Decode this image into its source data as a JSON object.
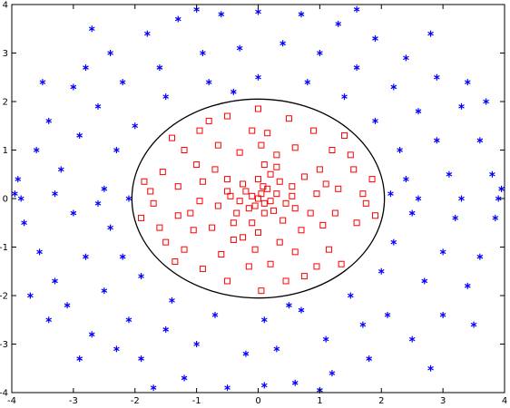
{
  "chart_data": {
    "type": "scatter",
    "title": "",
    "xlabel": "",
    "ylabel": "",
    "xlim": [
      -4,
      4
    ],
    "ylim": [
      -4,
      4
    ],
    "grid": false,
    "legend": "none",
    "x_ticks": [
      -4,
      -3,
      -2,
      -1,
      0,
      1,
      2,
      3,
      4
    ],
    "y_ticks": [
      -4,
      -3,
      -2,
      -1,
      0,
      1,
      2,
      3,
      4
    ],
    "x_tick_labels": [
      "-4",
      "-3",
      "-2",
      "-1",
      "0",
      "1",
      "2",
      "3",
      "4"
    ],
    "y_tick_labels": [
      "-4",
      "-3",
      "-2",
      "-1",
      "0",
      "1",
      "2",
      "3",
      "4"
    ],
    "boundary": {
      "shape": "ellipse",
      "center": [
        0,
        0
      ],
      "rx": 2.05,
      "ry": 2.05,
      "color": "#000000"
    },
    "series": [
      {
        "marker": "square",
        "color": "#ff0000",
        "points": [
          [
            0.0,
            0.0
          ],
          [
            0.05,
            0.1
          ],
          [
            -0.1,
            0.05
          ],
          [
            0.1,
            -0.1
          ],
          [
            -0.05,
            -0.15
          ],
          [
            0.15,
            0.2
          ],
          [
            -0.2,
            0.15
          ],
          [
            0.2,
            -0.05
          ],
          [
            -0.15,
            -0.2
          ],
          [
            0.08,
            0.25
          ],
          [
            0.3,
            0.1
          ],
          [
            -0.3,
            -0.05
          ],
          [
            0.25,
            -0.25
          ],
          [
            -0.25,
            0.3
          ],
          [
            0.1,
            -0.3
          ],
          [
            0.35,
            0.35
          ],
          [
            -0.35,
            -0.3
          ],
          [
            0.0,
            0.4
          ],
          [
            0.45,
            -0.1
          ],
          [
            -0.45,
            0.05
          ],
          [
            0.2,
            0.5
          ],
          [
            -0.1,
            -0.5
          ],
          [
            0.55,
            0.25
          ],
          [
            -0.5,
            0.4
          ],
          [
            0.4,
            -0.45
          ],
          [
            -0.4,
            -0.5
          ],
          [
            0.6,
            -0.2
          ],
          [
            -0.65,
            -0.15
          ],
          [
            0.1,
            0.7
          ],
          [
            0.0,
            -0.7
          ],
          [
            0.75,
            0.45
          ],
          [
            -0.7,
            0.6
          ],
          [
            0.7,
            -0.65
          ],
          [
            -0.75,
            -0.6
          ],
          [
            0.3,
            0.9
          ],
          [
            -0.3,
            0.95
          ],
          [
            0.35,
            -0.9
          ],
          [
            -0.4,
            -0.85
          ],
          [
            0.95,
            0.1
          ],
          [
            -0.95,
            -0.05
          ],
          [
            1.0,
            0.6
          ],
          [
            -1.0,
            0.7
          ],
          [
            1.05,
            -0.55
          ],
          [
            -1.05,
            -0.65
          ],
          [
            0.6,
            1.05
          ],
          [
            -0.65,
            1.1
          ],
          [
            0.6,
            -1.1
          ],
          [
            -0.6,
            -1.15
          ],
          [
            1.3,
            0.2
          ],
          [
            -1.3,
            0.25
          ],
          [
            1.25,
            -0.3
          ],
          [
            -1.3,
            -0.35
          ],
          [
            0.15,
            1.35
          ],
          [
            -0.1,
            1.4
          ],
          [
            0.2,
            -1.35
          ],
          [
            -0.15,
            -1.4
          ],
          [
            1.2,
            1.0
          ],
          [
            -1.2,
            1.0
          ],
          [
            1.15,
            -1.05
          ],
          [
            -1.2,
            -1.05
          ],
          [
            0.9,
            1.4
          ],
          [
            -0.95,
            1.4
          ],
          [
            0.95,
            -1.4
          ],
          [
            -0.9,
            -1.45
          ],
          [
            1.55,
            0.6
          ],
          [
            -1.55,
            0.55
          ],
          [
            1.6,
            -0.5
          ],
          [
            -1.6,
            -0.6
          ],
          [
            1.7,
            0.1
          ],
          [
            -1.7,
            -0.1
          ],
          [
            1.75,
            -0.1
          ],
          [
            -1.75,
            0.15
          ],
          [
            0.5,
            1.65
          ],
          [
            -0.5,
            1.7
          ],
          [
            0.45,
            -1.7
          ],
          [
            -0.5,
            -1.7
          ],
          [
            1.4,
            1.3
          ],
          [
            -1.4,
            1.25
          ],
          [
            1.35,
            -1.35
          ],
          [
            -1.35,
            -1.3
          ],
          [
            1.85,
            0.4
          ],
          [
            -1.85,
            0.35
          ],
          [
            1.9,
            -0.35
          ],
          [
            -1.9,
            -0.4
          ],
          [
            0.0,
            1.85
          ],
          [
            0.05,
            -1.9
          ],
          [
            -0.9,
            0.35
          ],
          [
            0.85,
            -0.3
          ],
          [
            -0.5,
            0.15
          ],
          [
            0.55,
            0.05
          ],
          [
            -0.25,
            -0.8
          ],
          [
            0.3,
            0.65
          ],
          [
            1.5,
            0.9
          ],
          [
            -1.5,
            -0.9
          ],
          [
            0.75,
            -1.6
          ],
          [
            -0.8,
            1.6
          ],
          [
            1.1,
            0.3
          ],
          [
            -1.1,
            -0.3
          ],
          [
            0.05,
            1.1
          ],
          [
            -0.05,
            -1.05
          ]
        ]
      },
      {
        "marker": "asterisk",
        "color": "#0000ff",
        "points": [
          [
            -3.9,
            0.4
          ],
          [
            -3.8,
            -0.5
          ],
          [
            -3.85,
            0.0
          ],
          [
            -3.6,
            1.0
          ],
          [
            -3.55,
            -1.1
          ],
          [
            -3.4,
            1.6
          ],
          [
            -3.3,
            -1.7
          ],
          [
            -3.0,
            2.3
          ],
          [
            -3.1,
            -2.2
          ],
          [
            -2.8,
            2.7
          ],
          [
            -2.7,
            -2.8
          ],
          [
            -2.4,
            3.0
          ],
          [
            -2.3,
            -3.1
          ],
          [
            -1.8,
            3.4
          ],
          [
            -1.9,
            -3.3
          ],
          [
            -1.3,
            3.7
          ],
          [
            -1.2,
            -3.7
          ],
          [
            -0.6,
            3.8
          ],
          [
            -0.5,
            -3.9
          ],
          [
            0.0,
            3.85
          ],
          [
            0.1,
            -3.85
          ],
          [
            0.7,
            3.8
          ],
          [
            0.6,
            -3.8
          ],
          [
            1.3,
            3.6
          ],
          [
            1.2,
            -3.6
          ],
          [
            1.9,
            3.3
          ],
          [
            1.8,
            -3.3
          ],
          [
            2.4,
            2.9
          ],
          [
            2.5,
            -2.9
          ],
          [
            2.9,
            2.5
          ],
          [
            3.0,
            -2.4
          ],
          [
            3.3,
            1.9
          ],
          [
            3.4,
            -1.8
          ],
          [
            3.6,
            1.2
          ],
          [
            3.6,
            -1.2
          ],
          [
            3.8,
            0.5
          ],
          [
            3.85,
            -0.4
          ],
          [
            3.9,
            0.0
          ],
          [
            3.95,
            0.2
          ],
          [
            -3.95,
            0.1
          ],
          [
            -3.2,
            0.6
          ],
          [
            -3.0,
            -0.3
          ],
          [
            -2.9,
            1.3
          ],
          [
            -2.8,
            -1.2
          ],
          [
            -2.6,
            1.9
          ],
          [
            -2.5,
            -1.9
          ],
          [
            -2.2,
            2.4
          ],
          [
            -2.1,
            -2.5
          ],
          [
            -1.6,
            2.7
          ],
          [
            -1.5,
            -2.7
          ],
          [
            -0.9,
            3.0
          ],
          [
            -1.0,
            -3.0
          ],
          [
            -0.3,
            3.1
          ],
          [
            -0.2,
            -3.2
          ],
          [
            0.4,
            3.2
          ],
          [
            0.3,
            -3.1
          ],
          [
            1.0,
            3.0
          ],
          [
            1.1,
            -2.9
          ],
          [
            1.6,
            2.7
          ],
          [
            1.7,
            -2.6
          ],
          [
            2.2,
            2.3
          ],
          [
            2.1,
            -2.4
          ],
          [
            2.6,
            1.8
          ],
          [
            2.7,
            -1.7
          ],
          [
            2.9,
            1.2
          ],
          [
            3.0,
            -1.1
          ],
          [
            3.1,
            0.5
          ],
          [
            3.2,
            -0.4
          ],
          [
            3.3,
            0.0
          ],
          [
            -3.3,
            0.1
          ],
          [
            -2.5,
            0.2
          ],
          [
            -2.4,
            -0.6
          ],
          [
            -2.3,
            1.0
          ],
          [
            -2.2,
            -1.2
          ],
          [
            -2.0,
            1.5
          ],
          [
            -1.9,
            -1.6
          ],
          [
            -1.5,
            2.1
          ],
          [
            -1.4,
            -2.1
          ],
          [
            -0.8,
            2.4
          ],
          [
            -0.7,
            -2.4
          ],
          [
            0.0,
            2.5
          ],
          [
            0.1,
            -2.5
          ],
          [
            0.8,
            2.4
          ],
          [
            0.7,
            -2.3
          ],
          [
            1.4,
            2.1
          ],
          [
            1.5,
            -2.0
          ],
          [
            1.9,
            1.6
          ],
          [
            2.0,
            -1.5
          ],
          [
            2.3,
            1.0
          ],
          [
            2.2,
            -0.9
          ],
          [
            2.4,
            0.4
          ],
          [
            2.5,
            -0.3
          ],
          [
            2.6,
            0.0
          ],
          [
            -2.6,
            -0.1
          ],
          [
            -3.5,
            2.4
          ],
          [
            -3.4,
            -2.5
          ],
          [
            3.4,
            2.4
          ],
          [
            3.5,
            -2.6
          ],
          [
            -1.0,
            3.9
          ],
          [
            1.0,
            -3.95
          ],
          [
            2.8,
            3.4
          ],
          [
            -2.7,
            3.5
          ],
          [
            2.8,
            -3.5
          ],
          [
            -2.9,
            -3.3
          ],
          [
            -3.7,
            -2.0
          ],
          [
            3.7,
            2.0
          ],
          [
            -1.7,
            -3.9
          ],
          [
            1.6,
            3.9
          ],
          [
            -0.4,
            2.2
          ],
          [
            0.5,
            -2.2
          ],
          [
            -2.1,
            0.0
          ],
          [
            2.15,
            0.1
          ]
        ]
      }
    ]
  }
}
